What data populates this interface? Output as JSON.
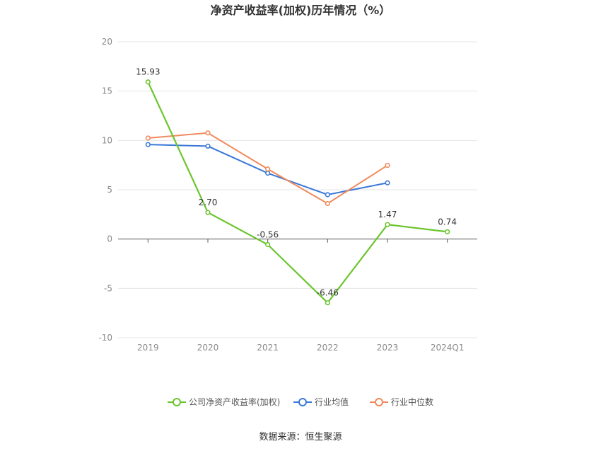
{
  "title": "净资产收益率(加权)历年情况（%）",
  "source": "数据来源：恒生聚源",
  "chart_data": {
    "type": "line",
    "categories": [
      "2019",
      "2020",
      "2021",
      "2022",
      "2023",
      "2024Q1"
    ],
    "ylim": [
      -10,
      20
    ],
    "yticks": [
      20,
      15,
      10,
      5,
      0,
      -5,
      -10
    ],
    "grid": true,
    "legend_position": "bottom-center",
    "series": [
      {
        "name": "公司净资产收益率(加权)",
        "color": "#6cc52e",
        "values": [
          15.93,
          2.7,
          -0.56,
          -6.46,
          1.47,
          0.74
        ],
        "labels": [
          "15.93",
          "2.70",
          "-0.56",
          "-6.46",
          "1.47",
          "0.74"
        ]
      },
      {
        "name": "行业均值",
        "color": "#3b78d8",
        "values": [
          9.58,
          9.42,
          6.68,
          4.5,
          5.7,
          null
        ]
      },
      {
        "name": "行业中位数",
        "color": "#f08a5d",
        "values": [
          10.24,
          10.76,
          7.1,
          3.6,
          7.47,
          null
        ]
      }
    ]
  }
}
